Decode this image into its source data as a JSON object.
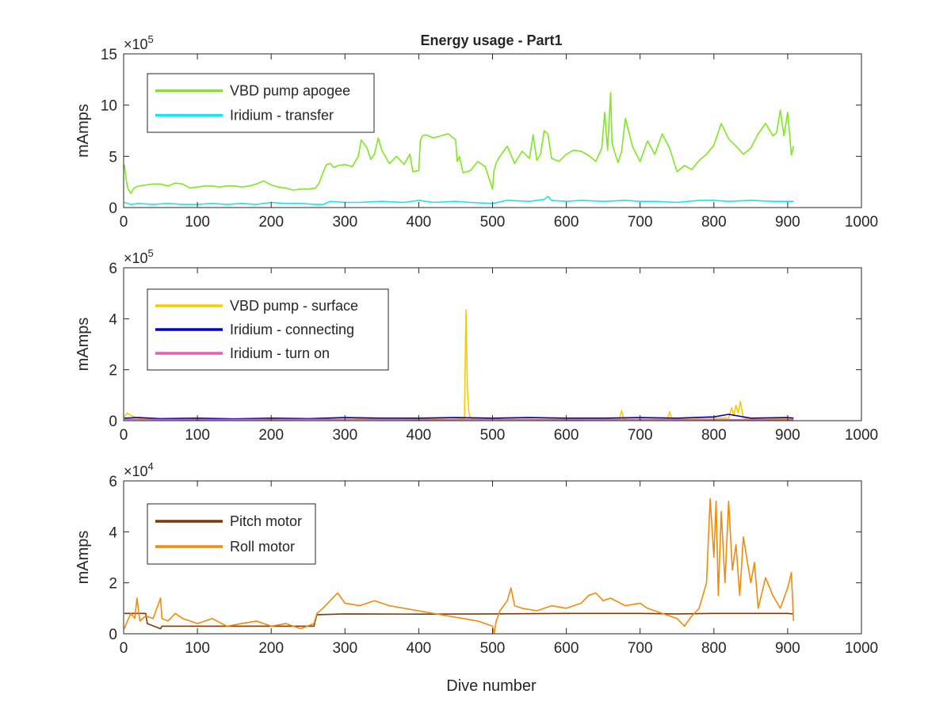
{
  "figure": {
    "title": "Energy usage - Part1",
    "xlabel": "Dive number"
  },
  "chart_data": [
    {
      "type": "line",
      "title": "Energy usage - Part1",
      "xlabel": "",
      "ylabel": "mAmps",
      "exponent": {
        "base": "×10",
        "power": "5"
      },
      "xlim": [
        0,
        1000
      ],
      "ylim": [
        0,
        15
      ],
      "xticks": [
        "0",
        "100",
        "200",
        "300",
        "400",
        "500",
        "600",
        "700",
        "800",
        "900",
        "1000"
      ],
      "yticks": [
        "0",
        "5",
        "10",
        "15"
      ],
      "legend_position": "top-left",
      "series": [
        {
          "name": "VBD pump apogee",
          "color": "#7fe81f",
          "x": [
            1,
            3,
            5,
            8,
            10,
            14,
            20,
            30,
            40,
            50,
            60,
            70,
            80,
            90,
            100,
            110,
            120,
            130,
            140,
            150,
            160,
            170,
            180,
            190,
            200,
            210,
            220,
            230,
            240,
            250,
            260,
            265,
            270,
            275,
            280,
            285,
            290,
            300,
            310,
            318,
            322,
            330,
            335,
            340,
            345,
            350,
            360,
            370,
            380,
            388,
            392,
            400,
            402,
            405,
            410,
            420,
            430,
            440,
            450,
            452,
            455,
            460,
            470,
            480,
            490,
            500,
            502,
            505,
            510,
            520,
            530,
            540,
            550,
            555,
            560,
            565,
            570,
            575,
            580,
            590,
            600,
            610,
            620,
            630,
            640,
            648,
            652,
            656,
            660,
            662,
            666,
            670,
            675,
            680,
            690,
            700,
            710,
            720,
            730,
            740,
            750,
            760,
            770,
            780,
            790,
            800,
            810,
            820,
            830,
            840,
            850,
            860,
            870,
            880,
            885,
            890,
            895,
            900,
            905,
            908
          ],
          "values": [
            4.2,
            3.0,
            2.0,
            1.6,
            1.4,
            1.9,
            2.1,
            2.2,
            2.3,
            2.3,
            2.1,
            2.4,
            2.3,
            1.9,
            2.0,
            2.1,
            2.1,
            2.0,
            2.1,
            2.1,
            2.0,
            2.1,
            2.3,
            2.6,
            2.2,
            2.0,
            1.9,
            1.7,
            1.8,
            1.8,
            1.9,
            2.4,
            3.4,
            4.2,
            4.3,
            3.9,
            4.1,
            4.2,
            4.0,
            5.0,
            6.6,
            5.8,
            4.7,
            5.2,
            6.8,
            5.6,
            4.3,
            5.0,
            4.2,
            5.2,
            3.5,
            3.6,
            6.5,
            7.0,
            7.1,
            6.8,
            7.0,
            7.2,
            6.6,
            4.5,
            5.0,
            3.4,
            3.6,
            4.5,
            4.0,
            1.8,
            3.6,
            4.4,
            5.0,
            6.0,
            4.3,
            5.5,
            4.8,
            7.1,
            4.6,
            5.2,
            7.5,
            7.2,
            4.8,
            4.5,
            5.2,
            5.6,
            5.5,
            5.1,
            4.5,
            5.8,
            9.3,
            5.6,
            11.2,
            6.3,
            5.3,
            4.4,
            5.5,
            8.7,
            5.9,
            4.5,
            6.5,
            5.2,
            7.2,
            5.8,
            3.5,
            4.1,
            3.7,
            4.6,
            5.2,
            6.1,
            8.2,
            6.7,
            6.0,
            5.2,
            5.8,
            7.2,
            8.2,
            7.0,
            7.3,
            9.5,
            7.0,
            9.3,
            5.1,
            6.0
          ]
        },
        {
          "name": "Iridium - transfer",
          "color": "#19e4ec",
          "x": [
            1,
            10,
            20,
            40,
            60,
            80,
            100,
            120,
            140,
            160,
            180,
            200,
            220,
            240,
            260,
            270,
            280,
            300,
            320,
            350,
            380,
            400,
            420,
            450,
            470,
            500,
            520,
            550,
            570,
            575,
            580,
            600,
            620,
            650,
            680,
            700,
            720,
            750,
            780,
            800,
            820,
            850,
            880,
            908
          ],
          "values": [
            0.5,
            0.3,
            0.4,
            0.3,
            0.4,
            0.3,
            0.3,
            0.4,
            0.3,
            0.4,
            0.3,
            0.5,
            0.4,
            0.4,
            0.3,
            0.3,
            0.6,
            0.5,
            0.5,
            0.6,
            0.5,
            0.7,
            0.5,
            0.6,
            0.5,
            0.4,
            0.7,
            0.6,
            0.8,
            1.1,
            0.7,
            0.6,
            0.7,
            0.6,
            0.7,
            0.6,
            0.6,
            0.5,
            0.7,
            0.7,
            0.6,
            0.7,
            0.6,
            0.6
          ]
        }
      ]
    },
    {
      "type": "line",
      "title": "",
      "xlabel": "",
      "ylabel": "mAmps",
      "exponent": {
        "base": "×10",
        "power": "5"
      },
      "xlim": [
        0,
        1000
      ],
      "ylim": [
        0,
        6
      ],
      "xticks": [
        "0",
        "100",
        "200",
        "300",
        "400",
        "500",
        "600",
        "700",
        "800",
        "900",
        "1000"
      ],
      "yticks": [
        "0",
        "2",
        "4",
        "6"
      ],
      "legend_position": "top-left",
      "series": [
        {
          "name": "VBD pump - surface",
          "color": "#f4cc00",
          "x": [
            1,
            5,
            10,
            20,
            40,
            60,
            100,
            150,
            200,
            250,
            300,
            350,
            400,
            450,
            462,
            464,
            466,
            468,
            470,
            480,
            500,
            550,
            600,
            650,
            672,
            675,
            678,
            700,
            737,
            740,
            743,
            770,
            800,
            820,
            824,
            827,
            830,
            833,
            836,
            840,
            870,
            900,
            908
          ],
          "values": [
            0.15,
            0.3,
            0.2,
            0.1,
            0.05,
            0.05,
            0.05,
            0.05,
            0.04,
            0.05,
            0.05,
            0.1,
            0.08,
            0.05,
            0.1,
            4.35,
            1.2,
            0.3,
            0.1,
            0.05,
            0.05,
            0.05,
            0.05,
            0.05,
            0.05,
            0.4,
            0.05,
            0.05,
            0.05,
            0.35,
            0.05,
            0.1,
            0.1,
            0.1,
            0.5,
            0.2,
            0.6,
            0.3,
            0.75,
            0.1,
            0.05,
            0.1,
            0.05
          ]
        },
        {
          "name": "Iridium - connecting",
          "color": "#0000cc",
          "x": [
            1,
            20,
            50,
            100,
            150,
            200,
            250,
            300,
            350,
            400,
            450,
            500,
            550,
            600,
            650,
            700,
            750,
            800,
            820,
            850,
            900,
            908
          ],
          "values": [
            0.1,
            0.12,
            0.08,
            0.1,
            0.07,
            0.1,
            0.08,
            0.12,
            0.1,
            0.1,
            0.12,
            0.1,
            0.12,
            0.1,
            0.1,
            0.12,
            0.1,
            0.15,
            0.25,
            0.1,
            0.12,
            0.1
          ]
        },
        {
          "name": "Iridium - turn on",
          "color": "#ef5bb1",
          "x": [
            1,
            100,
            200,
            300,
            400,
            500,
            600,
            700,
            800,
            908
          ],
          "values": [
            0.05,
            0.04,
            0.05,
            0.05,
            0.04,
            0.05,
            0.04,
            0.05,
            0.04,
            0.04
          ]
        }
      ]
    },
    {
      "type": "line",
      "title": "",
      "xlabel": "Dive number",
      "ylabel": "mAmps",
      "exponent": {
        "base": "×10",
        "power": "4"
      },
      "xlim": [
        0,
        1000
      ],
      "ylim": [
        0,
        6
      ],
      "xticks": [
        "0",
        "100",
        "200",
        "300",
        "400",
        "500",
        "600",
        "700",
        "800",
        "900",
        "1000"
      ],
      "yticks": [
        "0",
        "2",
        "4",
        "6"
      ],
      "legend_position": "top-left",
      "series": [
        {
          "name": "Pitch motor",
          "color": "#7c3a0c",
          "x": [
            1,
            30,
            32,
            50,
            52,
            100,
            150,
            200,
            250,
            258,
            260,
            262,
            300,
            400,
            500,
            600,
            700,
            750,
            800,
            900,
            908
          ],
          "values": [
            0.8,
            0.8,
            0.4,
            0.2,
            0.3,
            0.3,
            0.3,
            0.3,
            0.3,
            0.3,
            0.55,
            0.75,
            0.78,
            0.77,
            0.78,
            0.8,
            0.8,
            0.78,
            0.8,
            0.8,
            0.78
          ]
        },
        {
          "name": "Roll motor",
          "color": "#f28a0a",
          "x": [
            1,
            5,
            10,
            15,
            18,
            22,
            30,
            40,
            50,
            52,
            60,
            70,
            80,
            90,
            100,
            120,
            140,
            160,
            180,
            200,
            220,
            240,
            258,
            262,
            270,
            280,
            290,
            300,
            320,
            340,
            360,
            380,
            400,
            420,
            440,
            460,
            480,
            500,
            502,
            505,
            510,
            520,
            525,
            530,
            540,
            560,
            580,
            600,
            620,
            630,
            640,
            650,
            660,
            680,
            700,
            710,
            730,
            750,
            760,
            770,
            780,
            790,
            795,
            800,
            803,
            806,
            810,
            815,
            820,
            825,
            830,
            835,
            840,
            850,
            855,
            860,
            870,
            880,
            890,
            900,
            905,
            908
          ],
          "values": [
            0.2,
            0.5,
            0.8,
            0.6,
            1.4,
            0.5,
            0.7,
            0.6,
            1.4,
            0.6,
            0.5,
            0.8,
            0.6,
            0.5,
            0.4,
            0.6,
            0.3,
            0.4,
            0.5,
            0.3,
            0.4,
            0.2,
            0.4,
            0.8,
            1.0,
            1.3,
            1.6,
            1.2,
            1.1,
            1.3,
            1.1,
            1.0,
            0.9,
            0.8,
            0.7,
            0.6,
            0.5,
            0.3,
            0.0,
            0.5,
            0.9,
            1.3,
            1.8,
            1.1,
            1.0,
            0.9,
            1.1,
            1.0,
            1.2,
            1.5,
            1.6,
            1.3,
            1.4,
            1.1,
            1.2,
            1.0,
            0.8,
            0.6,
            0.3,
            0.7,
            1.0,
            2.0,
            5.3,
            3.0,
            5.2,
            1.5,
            4.8,
            2.0,
            5.2,
            2.5,
            3.5,
            1.5,
            3.8,
            2.0,
            2.8,
            1.0,
            2.2,
            1.5,
            1.0,
            1.8,
            2.4,
            0.5
          ]
        }
      ]
    }
  ]
}
